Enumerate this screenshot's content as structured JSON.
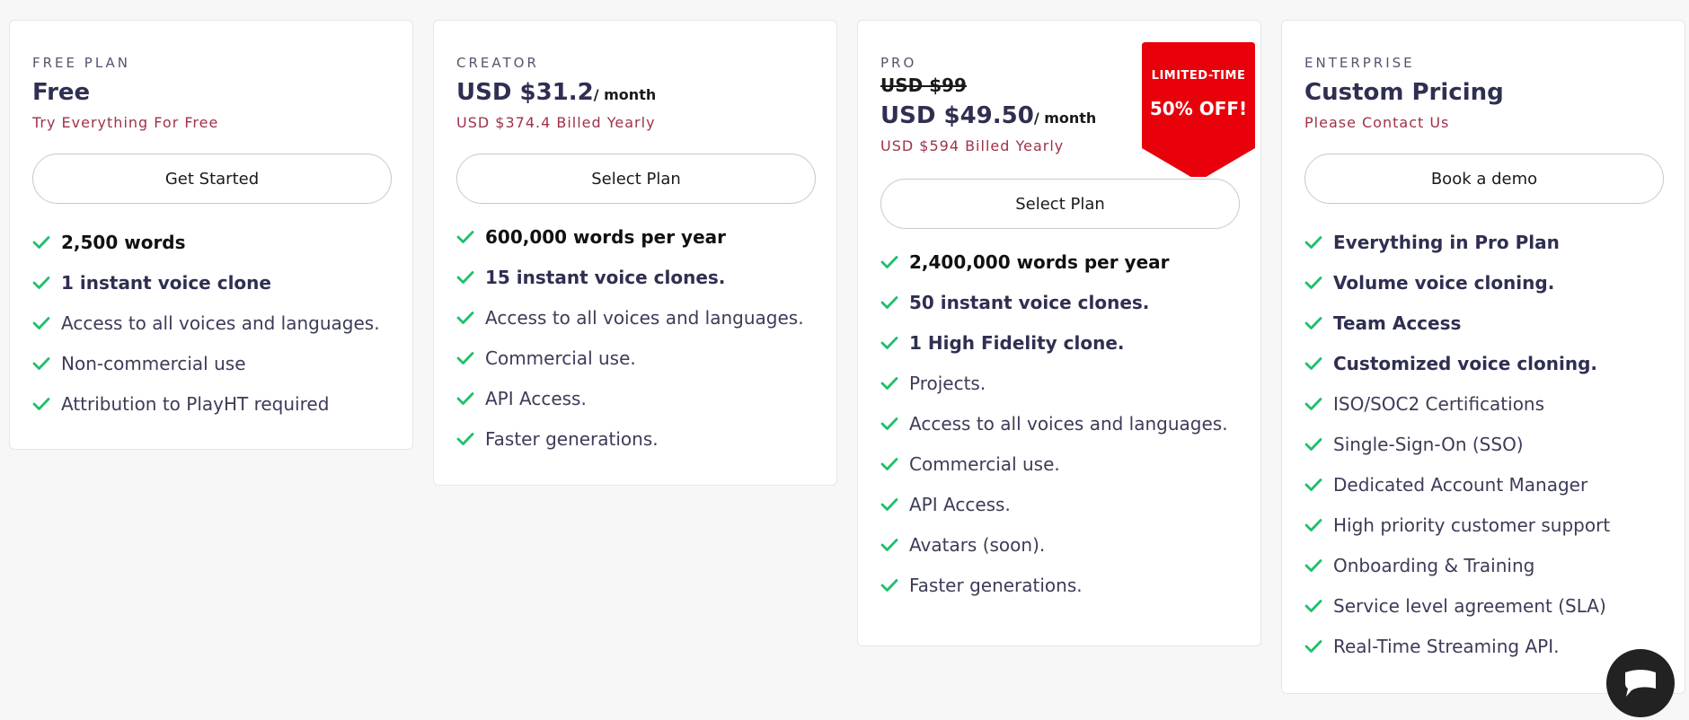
{
  "plans": [
    {
      "label": "FREE PLAN",
      "price": "Free",
      "period": "",
      "subtext": "Try Everything For Free",
      "cta": "Get Started",
      "features": [
        {
          "text": "2,500 words"
        },
        {
          "text": "1 instant voice clone"
        },
        {
          "text": "Access to all voices and languages."
        },
        {
          "text": "Non-commercial use"
        },
        {
          "text": "Attribution to PlayHT required"
        }
      ]
    },
    {
      "label": "CREATOR",
      "price": "USD $31.2",
      "period": "/ month",
      "subtext": "USD $374.4 Billed Yearly",
      "cta": "Select Plan",
      "features": [
        {
          "text": "600,000 words per year"
        },
        {
          "text": "15 instant voice clones."
        },
        {
          "text": "Access to all voices and languages."
        },
        {
          "text": "Commercial use."
        },
        {
          "text": "API Access."
        },
        {
          "text": "Faster generations."
        }
      ]
    },
    {
      "label": "PRO",
      "old_price": "USD $99",
      "price": "USD $49.50",
      "period": "/ month",
      "subtext": "USD $594 Billed Yearly",
      "cta": "Select Plan",
      "badge": {
        "top": "LIMITED-TIME",
        "main": "50% OFF!"
      },
      "features": [
        {
          "text": "2,400,000 words per year"
        },
        {
          "text": "50 instant voice clones."
        },
        {
          "text": "1 High Fidelity clone."
        },
        {
          "text": "Projects."
        },
        {
          "text": "Access to all voices and languages."
        },
        {
          "text": "Commercial use."
        },
        {
          "text": "API Access."
        },
        {
          "text": "Avatars (soon)."
        },
        {
          "text": "Faster generations."
        }
      ]
    },
    {
      "label": "ENTERPRISE",
      "price": "Custom Pricing",
      "period": "",
      "subtext": "Please Contact Us",
      "cta": "Book a demo",
      "features": [
        {
          "text": "Everything in Pro Plan"
        },
        {
          "text": "Volume voice cloning."
        },
        {
          "text": "Team Access"
        },
        {
          "text": "Customized voice cloning."
        },
        {
          "text": "ISO/SOC2 Certifications"
        },
        {
          "text": "Single-Sign-On (SSO)"
        },
        {
          "text": "Dedicated Account Manager"
        },
        {
          "text": "High priority customer support"
        },
        {
          "text": "Onboarding & Training"
        },
        {
          "text": "Service level agreement (SLA)"
        },
        {
          "text": "Real-Time Streaming API."
        }
      ]
    }
  ],
  "colors": {
    "accent_text": "#a0314a",
    "check": "#1ec06b",
    "badge": "#e8000b",
    "heading": "#2f2f52"
  },
  "icons": {
    "feature": "check-icon",
    "chat": "chat-bubble-icon"
  }
}
